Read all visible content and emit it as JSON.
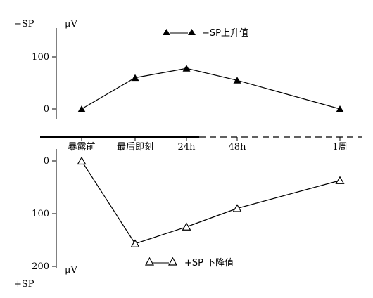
{
  "chart_data": {
    "type": "line",
    "categories": [
      "暴露前",
      "最后即刻",
      "24h",
      "48h",
      "1周"
    ],
    "top_panel": {
      "axis_top_label": "−SP",
      "unit": "μV",
      "ylim": [
        0,
        100
      ],
      "yticks": [
        "100",
        "0"
      ],
      "series": [
        {
          "name": "−SP上升值",
          "marker": "filled-triangle",
          "values": [
            0,
            60,
            78,
            55,
            0
          ]
        }
      ]
    },
    "bottom_panel": {
      "axis_bottom_label": "+SP",
      "unit": "μV",
      "ylim": [
        0,
        200
      ],
      "inverted": true,
      "yticks": [
        "0",
        "100",
        "200"
      ],
      "series": [
        {
          "name": "+SP 下降值",
          "marker": "open-triangle",
          "values": [
            0,
            157,
            125,
            90,
            37
          ]
        }
      ]
    },
    "grid": false,
    "legend_placement": "inline"
  }
}
